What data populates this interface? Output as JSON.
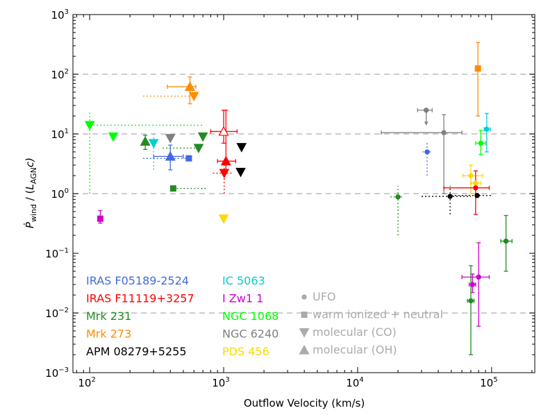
{
  "chart_data": {
    "type": "scatter",
    "title": "",
    "xlabel": "Outflow Velocity (km/s)",
    "ylabel_parts": {
      "main": "Ṗ",
      "sub1": "wind",
      "mid": " / (",
      "L": "L",
      "sub2": "AGN",
      "end": "c)"
    },
    "xscale": "log",
    "yscale": "log",
    "xlim": [
      75,
      210000
    ],
    "ylim": [
      0.001,
      1000
    ],
    "xticks": [
      {
        "value": 100,
        "base": "10",
        "exp": "2"
      },
      {
        "value": 1000,
        "base": "10",
        "exp": "3"
      },
      {
        "value": 10000,
        "base": "10",
        "exp": "4"
      },
      {
        "value": 100000,
        "base": "10",
        "exp": "5"
      }
    ],
    "yticks": [
      {
        "value": 0.001,
        "base": "10",
        "exp": "−3"
      },
      {
        "value": 0.01,
        "base": "10",
        "exp": "−2"
      },
      {
        "value": 0.1,
        "base": "10",
        "exp": "−1"
      },
      {
        "value": 1,
        "base": "10",
        "exp": "0"
      },
      {
        "value": 10,
        "base": "10",
        "exp": "1"
      },
      {
        "value": 100,
        "base": "10",
        "exp": "2"
      },
      {
        "value": 1000,
        "base": "10",
        "exp": "3"
      }
    ],
    "gridlines_y": [
      0.01,
      1,
      10,
      100
    ],
    "objects": [
      {
        "name": "IRAS F05189-2524",
        "color": "#4169e1"
      },
      {
        "name": "IRAS F11119+3257",
        "color": "#ff0000"
      },
      {
        "name": "Mrk 231",
        "color": "#228b22"
      },
      {
        "name": "Mrk 273",
        "color": "#ff8c00"
      },
      {
        "name": "APM 08279+5255",
        "color": "#000000"
      },
      {
        "name": "IC 5063",
        "color": "#00ced1"
      },
      {
        "name": "I Zw1 1",
        "color": "#cc00cc"
      },
      {
        "name": "NGC 1068",
        "color": "#00ff00"
      },
      {
        "name": "NGC 6240",
        "color": "#808080"
      },
      {
        "name": "PDS 456",
        "color": "#ffd700"
      }
    ],
    "phases": [
      {
        "label": "UFO",
        "marker": "circle",
        "color": "#aaaaaa"
      },
      {
        "label": "warm ionized + neutral",
        "marker": "square",
        "color": "#aaaaaa"
      },
      {
        "label": "molecular (CO)",
        "marker": "triangle-down",
        "color": "#aaaaaa"
      },
      {
        "label": "molecular (OH)",
        "marker": "triangle-up",
        "color": "#aaaaaa"
      }
    ],
    "points": [
      {
        "obj": "NGC 1068",
        "marker": "triangle-down",
        "x": 100,
        "y": 14,
        "xlo": 100,
        "xhi": 700,
        "ylo": 1.0,
        "yhi": 25,
        "dotted": true
      },
      {
        "obj": "NGC 1068",
        "marker": "triangle-down",
        "x": 150,
        "y": 9
      },
      {
        "obj": "I Zw1 1",
        "marker": "square",
        "x": 120,
        "y": 0.38,
        "ylo": 0.32,
        "yhi": 0.52
      },
      {
        "obj": "Mrk 231",
        "marker": "triangle-up",
        "x": 260,
        "y": 7.5,
        "ylo": 5.5,
        "yhi": 9.5
      },
      {
        "obj": "IC 5063",
        "marker": "triangle-down",
        "x": 300,
        "y": 7,
        "ylo": 2.5,
        "yhi": 11,
        "dotted": true
      },
      {
        "obj": "NGC 6240",
        "marker": "triangle-down",
        "x": 400,
        "y": 8.5
      },
      {
        "obj": "IRAS F05189-2524",
        "marker": "triangle-up",
        "x": 400,
        "y": 4.2,
        "xlo": 300,
        "xhi": 500,
        "ylo": 2.5,
        "yhi": 6.5
      },
      {
        "obj": "IRAS F05189-2524",
        "marker": "square",
        "x": 550,
        "y": 3.9,
        "xlo": 250,
        "xhi": 550,
        "dotted": true
      },
      {
        "obj": "Mrk 231",
        "marker": "square",
        "x": 420,
        "y": 1.22,
        "xlo": 420,
        "xhi": 750,
        "dotted": true
      },
      {
        "obj": "Mrk 273",
        "marker": "triangle-up",
        "x": 560,
        "y": 62,
        "xlo": 380,
        "xhi": 620,
        "ylo": 32,
        "yhi": 90
      },
      {
        "obj": "Mrk 273",
        "marker": "triangle-down",
        "x": 600,
        "y": 43,
        "xlo": 250,
        "xhi": 600,
        "dotted": true
      },
      {
        "obj": "Mrk 231",
        "marker": "triangle-down",
        "x": 650,
        "y": 5.8,
        "xlo": 350,
        "xhi": 650,
        "dotted": true
      },
      {
        "obj": "Mrk 231",
        "marker": "triangle-down",
        "x": 700,
        "y": 9.0
      },
      {
        "obj": "IRAS F11119+3257",
        "marker": "triangle-up",
        "x": 1000,
        "y": 11,
        "xlo": 800,
        "xhi": 1260,
        "ylo": 7.0,
        "yhi": 25,
        "hollow": true
      },
      {
        "obj": "IRAS F11119+3257",
        "marker": "triangle-up",
        "x": 1040,
        "y": 3.5,
        "xlo": 900,
        "xhi": 1230,
        "ylo": 2.5,
        "yhi": 25
      },
      {
        "obj": "IRAS F11119+3257",
        "marker": "triangle-down",
        "x": 1010,
        "y": 2.2,
        "xlo": 830,
        "xhi": 1160,
        "ylo": 1.0,
        "yhi": 3.2,
        "dotted": true
      },
      {
        "obj": "PDS 456",
        "marker": "triangle-down",
        "x": 1000,
        "y": 0.38
      },
      {
        "obj": "APM 08279+5255",
        "marker": "triangle-down",
        "x": 1360,
        "y": 6.0
      },
      {
        "obj": "APM 08279+5255",
        "marker": "triangle-down",
        "x": 1340,
        "y": 2.3
      },
      {
        "obj": "Mrk 231",
        "marker": "circle",
        "x": 20000,
        "y": 0.88,
        "xlo": 17500,
        "xhi": 22000,
        "ylo": 0.2,
        "yhi": 1.35,
        "dotted": true
      },
      {
        "obj": "NGC 6240",
        "marker": "circle",
        "x": 32500,
        "y": 25,
        "xlo": 28000,
        "xhi": 36000,
        "ylo": 14,
        "yhi": 25,
        "arrow": true
      },
      {
        "obj": "IRAS F05189-2524",
        "marker": "circle",
        "x": 33000,
        "y": 5.0,
        "xlo": 30500,
        "xhi": 36000,
        "ylo": 2.0,
        "yhi": 7.5,
        "dotted": true
      },
      {
        "obj": "NGC 6240",
        "marker": "circle",
        "x": 44000,
        "y": 10.5,
        "xlo": 15000,
        "xhi": 60000,
        "ylo": 1.0,
        "yhi": 21
      },
      {
        "obj": "APM 08279+5255",
        "marker": "circle",
        "x": 49000,
        "y": 0.9,
        "xlo": 30000,
        "xhi": 70000,
        "ylo": 0.45,
        "yhi": 1.35,
        "dotted": true
      },
      {
        "obj": "APM 08279+5255",
        "marker": "circle",
        "x": 78000,
        "y": 0.93,
        "xlo": 50000,
        "xhi": 100000,
        "dotted": true
      },
      {
        "obj": "PDS 456",
        "marker": "circle",
        "x": 70000,
        "y": 2.0,
        "xlo": 61000,
        "xhi": 86000,
        "ylo": 1.0,
        "yhi": 3.0
      },
      {
        "obj": "PDS 456",
        "marker": "circle",
        "x": 76000,
        "y": 1.5,
        "xlo": 70000,
        "xhi": 83000
      },
      {
        "obj": "IRAS F11119+3257",
        "marker": "circle",
        "x": 76000,
        "y": 1.25,
        "xlo": 44000,
        "xhi": 96000,
        "ylo": 0.45,
        "yhi": 2.4
      },
      {
        "obj": "Mrk 273",
        "marker": "square",
        "x": 79000,
        "y": 125,
        "ylo": 20,
        "yhi": 340
      },
      {
        "obj": "NGC 1068",
        "marker": "circle",
        "x": 83000,
        "y": 7.0,
        "xlo": 76000,
        "xhi": 90000,
        "ylo": 4.5,
        "yhi": 11.5
      },
      {
        "obj": "IC 5063",
        "marker": "circle",
        "x": 92000,
        "y": 12,
        "xlo": 88000,
        "xhi": 98000,
        "ylo": 5.0,
        "yhi": 22
      },
      {
        "obj": "Mrk 231",
        "marker": "circle",
        "x": 128000,
        "y": 0.16,
        "xlo": 117000,
        "xhi": 142000,
        "ylo": 0.05,
        "yhi": 0.43
      },
      {
        "obj": "I Zw1 1",
        "marker": "circle",
        "x": 80000,
        "y": 0.04,
        "xlo": 60000,
        "xhi": 96000,
        "ylo": 0.006,
        "yhi": 0.15
      },
      {
        "obj": "I Zw1 1",
        "marker": "circle",
        "x": 72000,
        "y": 0.03,
        "xlo": 68000,
        "xhi": 76000,
        "ylo": 0.022,
        "yhi": 0.045
      },
      {
        "obj": "Mrk 231",
        "marker": "circle",
        "x": 70000,
        "y": 0.016,
        "xlo": 66000,
        "xhi": 74000,
        "ylo": 0.002,
        "yhi": 0.062
      }
    ]
  }
}
